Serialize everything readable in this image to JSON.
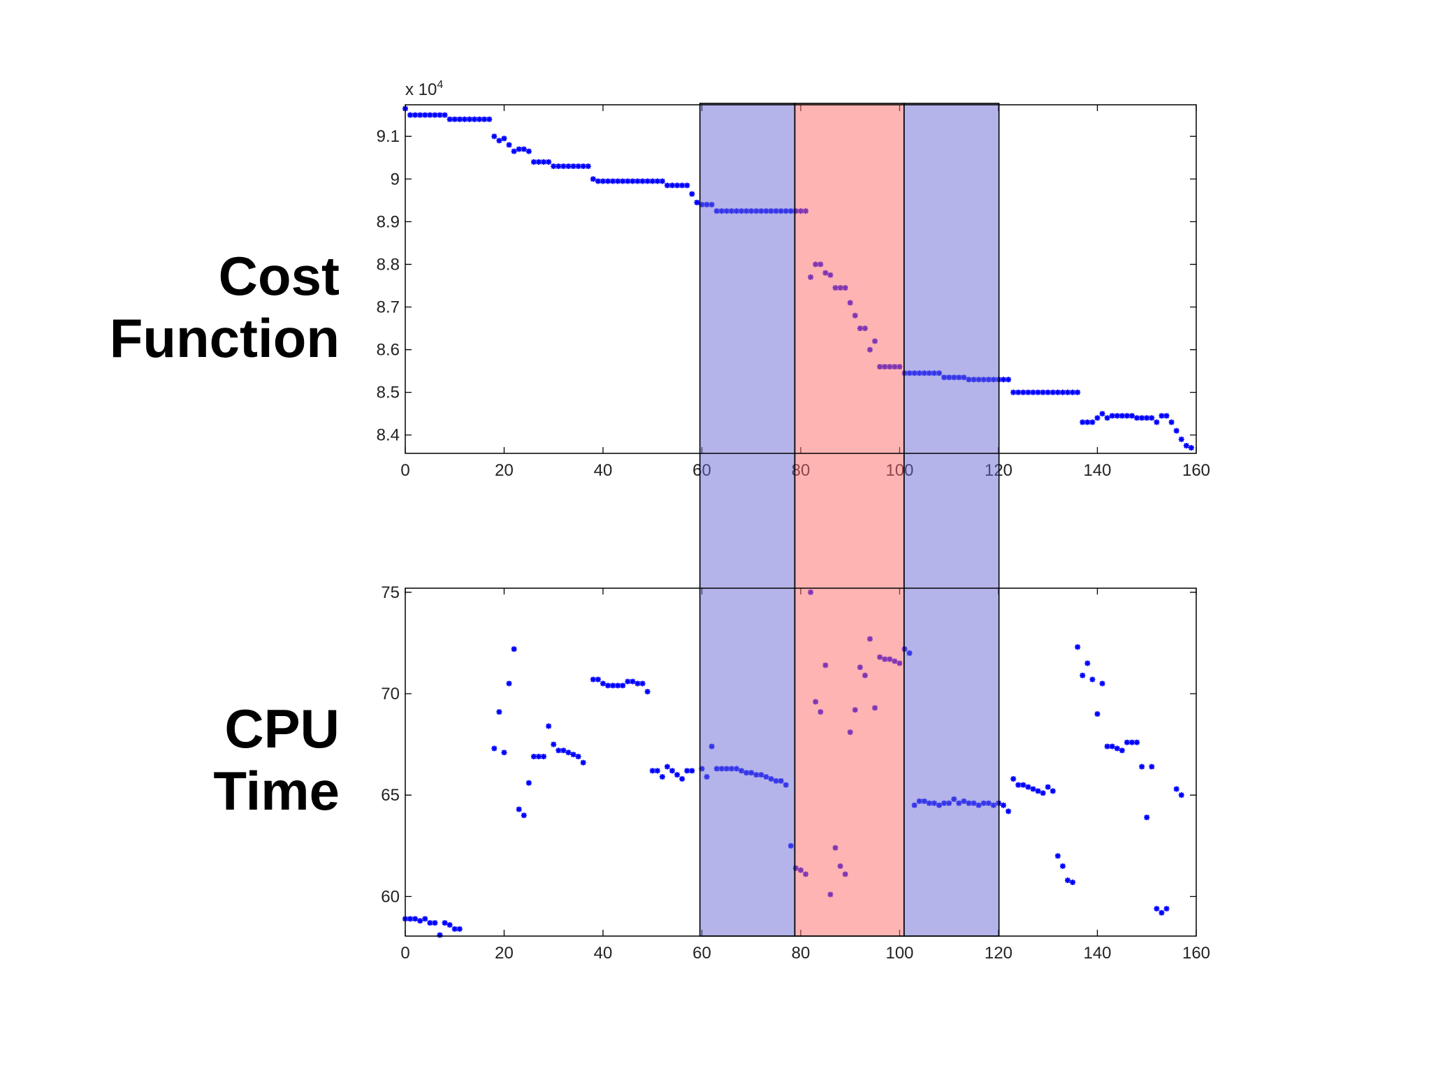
{
  "chart_data": [
    {
      "type": "scatter",
      "ylabel": [
        "Cost",
        "Function"
      ],
      "y_multiplier": "x 10",
      "y_multiplier_exp": "4",
      "color": "#0000ff",
      "xlim": [
        0,
        160
      ],
      "xticks": [
        0,
        20,
        40,
        60,
        80,
        100,
        120,
        140,
        160
      ],
      "ylim": [
        8.357,
        9.174
      ],
      "yticks": [
        8.4,
        8.5,
        8.6,
        8.7,
        8.8,
        8.9,
        9,
        9.1
      ],
      "series": [
        {
          "x": [
            0,
            1,
            2,
            3,
            4,
            5,
            6,
            7,
            8,
            9,
            10,
            11,
            12,
            13,
            14,
            15,
            16,
            17,
            18,
            19,
            20,
            21,
            22,
            23,
            24,
            25,
            26,
            27,
            28,
            29,
            30,
            31,
            32,
            33,
            34,
            35,
            36,
            37,
            38,
            39,
            40,
            41,
            42,
            43,
            44,
            45,
            46,
            47,
            48,
            49,
            50,
            51,
            52,
            53,
            54,
            55,
            56,
            57,
            58,
            59,
            60,
            61,
            62,
            63,
            64,
            65,
            66,
            67,
            68,
            69,
            70,
            71,
            72,
            73,
            74,
            75,
            76,
            77,
            78,
            79,
            80,
            81,
            82,
            83,
            84,
            85,
            86,
            87,
            88,
            89,
            90,
            91,
            92,
            93,
            94,
            95,
            96,
            97,
            98,
            99,
            100,
            101,
            102,
            103,
            104,
            105,
            106,
            107,
            108,
            109,
            110,
            111,
            112,
            113,
            114,
            115,
            116,
            117,
            118,
            119,
            120,
            121,
            122,
            123,
            124,
            125,
            126,
            127,
            128,
            129,
            130,
            131,
            132,
            133,
            134,
            135,
            136,
            137,
            138,
            139,
            140,
            141,
            142,
            143,
            144,
            145,
            146,
            147,
            148,
            149,
            150,
            151,
            152,
            153,
            154,
            155,
            156,
            157,
            158,
            159
          ],
          "values": [
            9.165,
            9.15,
            9.15,
            9.15,
            9.15,
            9.15,
            9.15,
            9.15,
            9.15,
            9.14,
            9.14,
            9.14,
            9.14,
            9.14,
            9.14,
            9.14,
            9.14,
            9.14,
            9.1,
            9.09,
            9.095,
            9.08,
            9.065,
            9.07,
            9.07,
            9.065,
            9.04,
            9.04,
            9.04,
            9.04,
            9.03,
            9.03,
            9.03,
            9.03,
            9.03,
            9.03,
            9.03,
            9.03,
            9.0,
            8.995,
            8.995,
            8.995,
            8.995,
            8.995,
            8.995,
            8.995,
            8.995,
            8.995,
            8.995,
            8.995,
            8.995,
            8.995,
            8.995,
            8.985,
            8.985,
            8.985,
            8.985,
            8.985,
            8.965,
            8.945,
            8.94,
            8.94,
            8.94,
            8.925,
            8.925,
            8.925,
            8.925,
            8.925,
            8.925,
            8.925,
            8.925,
            8.925,
            8.925,
            8.925,
            8.925,
            8.925,
            8.925,
            8.925,
            8.925,
            8.925,
            8.925,
            8.925,
            8.77,
            8.8,
            8.8,
            8.78,
            8.775,
            8.745,
            8.745,
            8.745,
            8.71,
            8.68,
            8.65,
            8.65,
            8.6,
            8.62,
            8.56,
            8.56,
            8.56,
            8.56,
            8.56,
            8.545,
            8.545,
            8.545,
            8.545,
            8.545,
            8.545,
            8.545,
            8.545,
            8.535,
            8.535,
            8.535,
            8.535,
            8.535,
            8.53,
            8.53,
            8.53,
            8.53,
            8.53,
            8.53,
            8.53,
            8.53,
            8.53,
            8.5,
            8.5,
            8.5,
            8.5,
            8.5,
            8.5,
            8.5,
            8.5,
            8.5,
            8.5,
            8.5,
            8.5,
            8.5,
            8.5,
            8.43,
            8.43,
            8.43,
            8.44,
            8.45,
            8.44,
            8.445,
            8.445,
            8.445,
            8.445,
            8.445,
            8.44,
            8.44,
            8.44,
            8.44,
            8.43,
            8.445,
            8.445,
            8.43,
            8.41,
            8.39,
            8.375,
            8.37
          ]
        }
      ]
    },
    {
      "type": "scatter",
      "ylabel": [
        "CPU",
        "Time"
      ],
      "color": "#0000ff",
      "xlim": [
        0,
        160
      ],
      "xticks": [
        0,
        20,
        40,
        60,
        80,
        100,
        120,
        140,
        160
      ],
      "ylim": [
        58.05,
        75.2
      ],
      "yticks": [
        60,
        65,
        70,
        75
      ],
      "series": [
        {
          "x": [
            0,
            1,
            2,
            3,
            4,
            5,
            6,
            7,
            8,
            9,
            10,
            11,
            18,
            19,
            20,
            21,
            22,
            23,
            24,
            25,
            26,
            27,
            28,
            29,
            30,
            31,
            32,
            33,
            34,
            35,
            36,
            38,
            39,
            40,
            41,
            42,
            43,
            44,
            45,
            46,
            47,
            48,
            49,
            50,
            51,
            52,
            53,
            54,
            55,
            56,
            57,
            58,
            60,
            61,
            62,
            63,
            64,
            65,
            66,
            67,
            68,
            69,
            70,
            71,
            72,
            73,
            74,
            75,
            76,
            77,
            78,
            79,
            80,
            81,
            82,
            83,
            84,
            85,
            86,
            87,
            88,
            89,
            90,
            91,
            92,
            93,
            94,
            95,
            96,
            97,
            98,
            99,
            100,
            101,
            102,
            103,
            104,
            105,
            106,
            107,
            108,
            109,
            110,
            111,
            112,
            113,
            114,
            115,
            116,
            117,
            118,
            119,
            120,
            121,
            122,
            123,
            124,
            125,
            126,
            127,
            128,
            129,
            130,
            131,
            132,
            133,
            134,
            135,
            136,
            137,
            138,
            139,
            140,
            141,
            142,
            143,
            144,
            145,
            146,
            147,
            148,
            149,
            150,
            151,
            152,
            153,
            154,
            156,
            157
          ],
          "values": [
            58.9,
            58.9,
            58.9,
            58.8,
            58.9,
            58.7,
            58.7,
            58.1,
            58.7,
            58.6,
            58.4,
            58.4,
            67.3,
            69.1,
            67.1,
            70.5,
            72.2,
            64.3,
            64.0,
            65.6,
            66.9,
            66.9,
            66.9,
            68.4,
            67.5,
            67.2,
            67.2,
            67.1,
            67.0,
            66.9,
            66.6,
            70.7,
            70.7,
            70.5,
            70.4,
            70.4,
            70.4,
            70.4,
            70.6,
            70.6,
            70.5,
            70.5,
            70.1,
            66.2,
            66.2,
            65.9,
            66.4,
            66.2,
            66.0,
            65.8,
            66.2,
            66.2,
            66.3,
            65.9,
            67.4,
            66.3,
            66.3,
            66.3,
            66.3,
            66.3,
            66.2,
            66.1,
            66.1,
            66.0,
            66.0,
            65.9,
            65.8,
            65.7,
            65.7,
            65.5,
            62.5,
            61.4,
            61.3,
            61.1,
            75,
            69.6,
            69.1,
            71.4,
            60.1,
            62.4,
            61.5,
            61.1,
            68.1,
            69.2,
            71.3,
            70.9,
            72.7,
            69.3,
            71.8,
            71.7,
            71.7,
            71.6,
            71.5,
            72.2,
            72.0,
            64.5,
            64.7,
            64.7,
            64.6,
            64.6,
            64.5,
            64.6,
            64.6,
            64.8,
            64.6,
            64.7,
            64.6,
            64.6,
            64.5,
            64.6,
            64.6,
            64.5,
            64.6,
            64.5,
            64.2,
            65.8,
            65.5,
            65.5,
            65.4,
            65.3,
            65.2,
            65.1,
            65.4,
            65.2,
            62.0,
            61.5,
            60.8,
            60.7,
            72.3,
            70.9,
            71.5,
            70.7,
            69.0,
            70.5,
            67.4,
            67.4,
            67.3,
            67.2,
            67.6,
            67.6,
            67.6,
            66.4,
            63.9,
            66.4,
            59.4,
            59.2,
            59.4,
            65.3,
            65.0
          ]
        }
      ]
    }
  ],
  "highlight_regions": [
    {
      "from": 59.6,
      "to": 78.8,
      "color": "#6a6ad6"
    },
    {
      "from": 78.8,
      "to": 100.9,
      "color": "#ff6a6a"
    },
    {
      "from": 100.9,
      "to": 120.1,
      "color": "#6a6ad6"
    }
  ]
}
